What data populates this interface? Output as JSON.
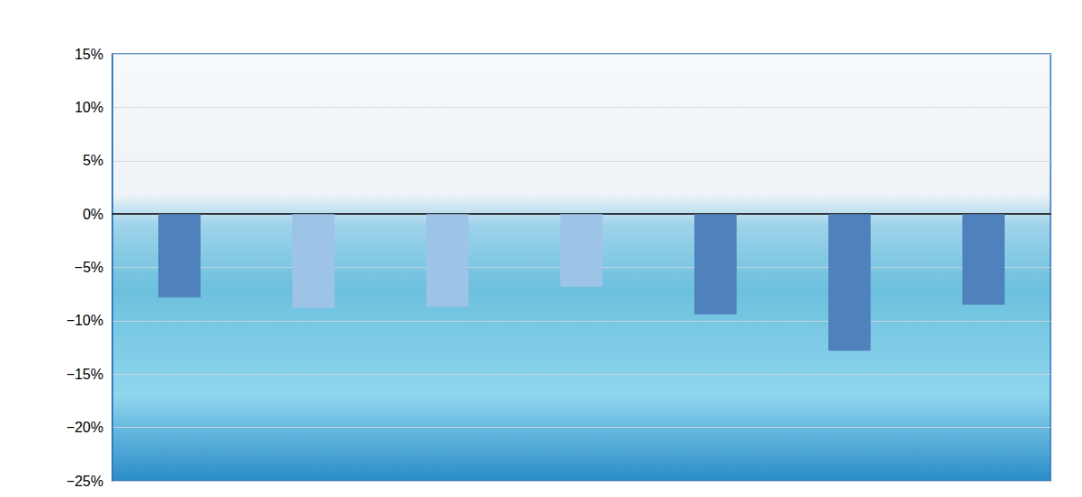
{
  "chart_data": {
    "type": "bar",
    "categories": [
      null,
      null,
      null,
      null,
      null,
      null,
      null
    ],
    "values": [
      -7.8,
      -8.8,
      -8.7,
      -6.8,
      -9.4,
      -12.8,
      -8.5
    ],
    "colors": [
      "#4f81bd",
      "#9dc3e6",
      "#9dc3e6",
      "#9dc3e6",
      "#4f81bd",
      "#4f81bd",
      "#4f81bd"
    ],
    "ylim": [
      -25,
      15
    ],
    "yticks": [
      {
        "value": -25,
        "label": "−25%"
      },
      {
        "value": -20,
        "label": "−20%"
      },
      {
        "value": -15,
        "label": "−15%"
      },
      {
        "value": -10,
        "label": "−10%"
      },
      {
        "value": -5,
        "label": "−5%"
      },
      {
        "value": 0,
        "label": "0%"
      },
      {
        "value": 5,
        "label": "5%"
      },
      {
        "value": 10,
        "label": "10%"
      },
      {
        "value": 15,
        "label": "15%"
      }
    ],
    "grid": true,
    "tick_labels": "y"
  }
}
